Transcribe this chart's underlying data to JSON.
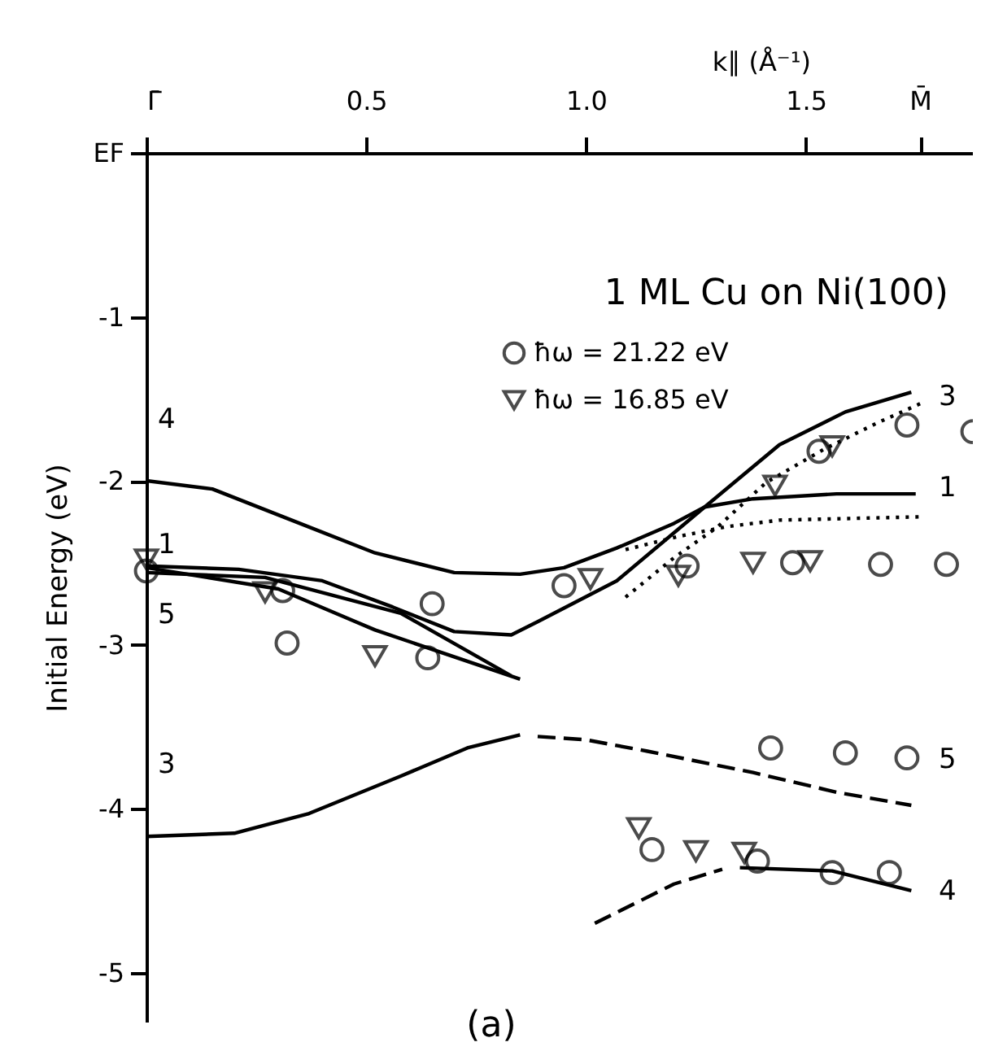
{
  "chart_data": {
    "type": "line",
    "xlabel": "k∥ (Å⁻¹)",
    "ylabel": "Initial Energy (eV)",
    "xlim": [
      0,
      1.88
    ],
    "ylim": [
      -5.3,
      0
    ],
    "xticks": [
      {
        "value": 0,
        "label": "Γ̄"
      },
      0.5,
      {
        "value": 1,
        "label": "1.0"
      },
      1.5,
      {
        "value": 1.76,
        "label": "M̄"
      }
    ],
    "yticks": [
      {
        "value": 0,
        "label": "EF"
      },
      -1,
      -2,
      -3,
      -4,
      -5
    ],
    "grid": false,
    "legend": "top right",
    "series": [
      {
        "type": "line",
        "marker": "none",
        "line_style": "solid",
        "color": "#000000",
        "x": [
          0,
          0.15,
          0.33,
          0.52,
          0.7,
          0.85,
          0.95,
          1.07,
          1.2,
          1.27,
          1.38,
          1.57,
          1.75
        ],
        "values": [
          -2.0,
          -2.05,
          -2.24,
          -2.44,
          -2.56,
          -2.57,
          -2.53,
          -2.41,
          -2.26,
          -2.16,
          -2.11,
          -2.08,
          -2.08
        ]
      },
      {
        "marker": "none",
        "line_style": "solid",
        "color": "#000000",
        "x": [
          0,
          0.21,
          0.4,
          0.56,
          0.7,
          0.83,
          0.89,
          1.07,
          1.27,
          1.44,
          1.59,
          1.74
        ],
        "values": [
          -2.52,
          -2.54,
          -2.61,
          -2.77,
          -2.92,
          -2.94,
          -2.86,
          -2.61,
          -2.16,
          -1.78,
          -1.58,
          -1.46
        ]
      },
      {
        "marker": "none",
        "line_style": "solid",
        "color": "#000000",
        "x": [
          0,
          0.3,
          0.52,
          0.85
        ],
        "values": [
          -2.53,
          -2.66,
          -2.91,
          -3.21
        ]
      },
      {
        "marker": "none",
        "line_style": "solid",
        "color": "#000000",
        "x": [
          0,
          0.27,
          0.58,
          0.83
        ],
        "values": [
          -2.56,
          -2.59,
          -2.81,
          -3.19
        ]
      },
      {
        "marker": "none",
        "line_style": "solid",
        "color": "#000000",
        "x": [
          0,
          0.2,
          0.37,
          0.58,
          0.73,
          0.85
        ],
        "values": [
          -4.17,
          -4.15,
          -4.03,
          -3.8,
          -3.63,
          -3.55
        ]
      },
      {
        "marker": "none",
        "line_style": "dashed",
        "color": "#000000",
        "x": [
          0.89,
          1.0,
          1.14,
          1.38,
          1.57,
          1.74
        ],
        "values": [
          -3.56,
          -3.58,
          -3.65,
          -3.78,
          -3.9,
          -3.98
        ]
      },
      {
        "marker": "none",
        "line_style": "dashed",
        "color": "#000000",
        "x": [
          1.02,
          1.2,
          1.31
        ],
        "values": [
          -4.7,
          -4.46,
          -4.37
        ]
      },
      {
        "marker": "none",
        "line_style": "solid",
        "color": "#000000",
        "x": [
          1.35,
          1.56,
          1.74
        ],
        "values": [
          -4.36,
          -4.38,
          -4.5
        ]
      },
      {
        "marker": "none",
        "line_style": "dotted",
        "color": "#000000",
        "x": [
          1.09,
          1.2,
          1.3,
          1.41,
          1.54,
          1.66,
          1.76
        ],
        "values": [
          -2.71,
          -2.47,
          -2.28,
          -2.01,
          -1.81,
          -1.65,
          -1.53
        ]
      },
      {
        "marker": "none",
        "line_style": "dotted",
        "color": "#000000",
        "x": [
          1.09,
          1.21,
          1.32,
          1.44,
          1.76
        ],
        "values": [
          -2.42,
          -2.34,
          -2.28,
          -2.24,
          -2.22
        ]
      },
      {
        "type": "scatter",
        "marker": "circle",
        "name": "ħω = 21.22 eV",
        "color": "#000000",
        "x": [
          0,
          0.31,
          0.32,
          0.65,
          0.64,
          0.95,
          1.23,
          1.47,
          1.67,
          1.82,
          1.53,
          1.73,
          1.88,
          1.42,
          1.59,
          1.73,
          1.15,
          1.39,
          1.56,
          1.69
        ],
        "values": [
          -2.55,
          -2.67,
          -2.99,
          -2.75,
          -3.08,
          -2.64,
          -2.52,
          -2.5,
          -2.51,
          -2.51,
          -1.82,
          -1.66,
          -1.7,
          -3.63,
          -3.66,
          -3.69,
          -4.25,
          -4.32,
          -4.39,
          -4.39
        ]
      },
      {
        "type": "scatter",
        "marker": "triangle",
        "name": "ħω = 16.85 eV",
        "color": "#000000",
        "x": [
          0,
          0.27,
          0.52,
          1.01,
          1.21,
          1.38,
          1.51,
          1.43,
          1.56,
          1.12,
          1.25,
          1.36
        ],
        "values": [
          -2.48,
          -2.68,
          -3.07,
          -2.6,
          -2.58,
          -2.5,
          -2.49,
          -2.03,
          -1.79,
          -4.12,
          -4.26,
          -4.27
        ]
      }
    ],
    "annotations": [
      "1 ML Cu on Ni(100)",
      "(a)",
      "4",
      "1",
      "5",
      "3",
      "3",
      "1",
      "5",
      "4"
    ]
  }
}
